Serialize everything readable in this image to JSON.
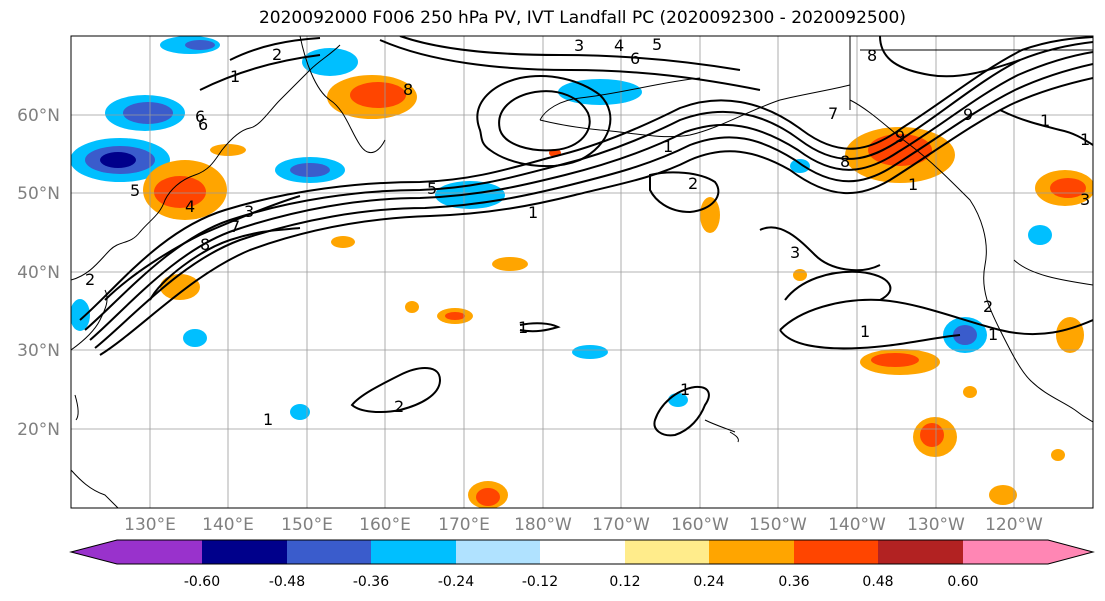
{
  "title": "2020092000 F006 250 hPa PV, IVT Landfall PC (2020092300 - 2020092500)",
  "lat_labels": [
    "60°N",
    "50°N",
    "40°N",
    "30°N",
    "20°N"
  ],
  "lon_labels": [
    "130°E",
    "140°E",
    "150°E",
    "160°E",
    "170°E",
    "180°W",
    "170°W",
    "160°W",
    "150°W",
    "140°W",
    "130°W",
    "120°W"
  ],
  "contour_labels": [
    "3",
    "4",
    "5",
    "6",
    "8",
    "7",
    "8",
    "6",
    "1",
    "2",
    "8",
    "9",
    "1",
    "5",
    "1",
    "2",
    "3",
    "2",
    "1",
    "8",
    "7",
    "6",
    "5",
    "4",
    "3",
    "2",
    "1",
    "2",
    "1",
    "1",
    "1",
    "1",
    "1",
    "9",
    "1",
    "3"
  ],
  "colorbar": {
    "colors": [
      "#9932cc",
      "#00008b",
      "#3a5ccc",
      "#00bfff",
      "#b0e2ff",
      "#ffffff",
      "#ffec8b",
      "#ffa500",
      "#ff4500",
      "#b22222",
      "#ff86b4"
    ],
    "tick_labels": [
      "-0.60",
      "-0.48",
      "-0.36",
      "-0.24",
      "-0.12",
      "0.12",
      "0.24",
      "0.36",
      "0.48",
      "0.60"
    ]
  }
}
